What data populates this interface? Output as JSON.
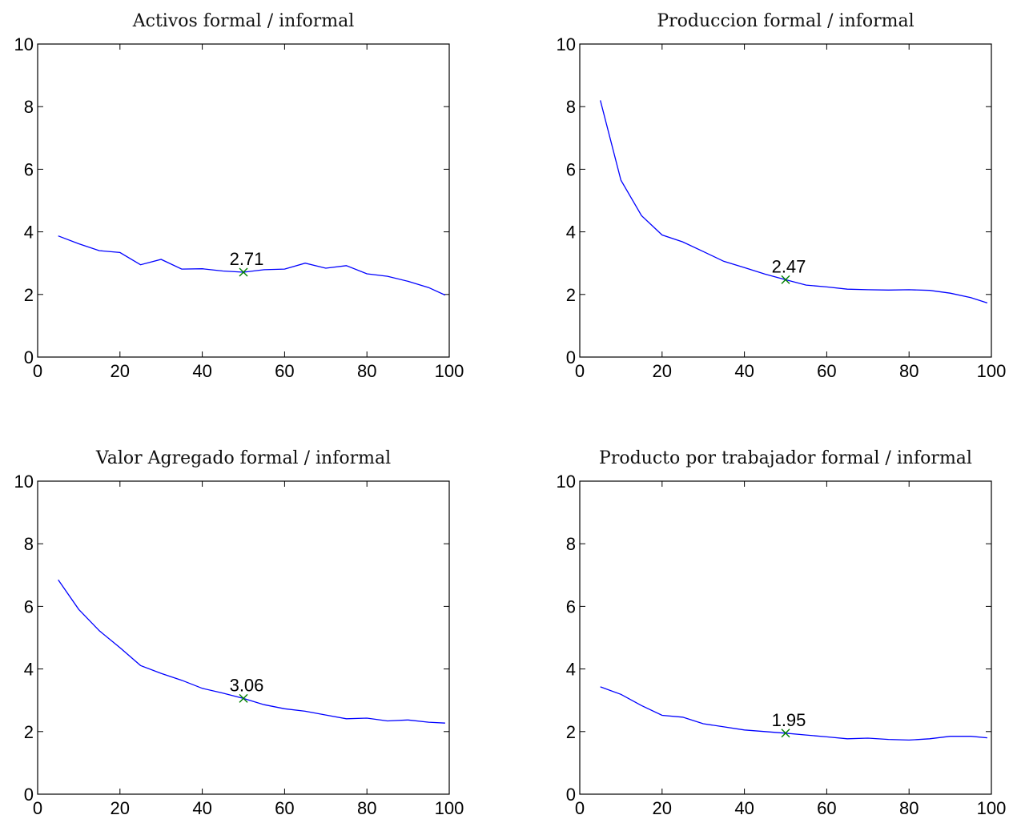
{
  "chart_data": [
    {
      "type": "line",
      "title": "Activos formal / informal",
      "xlim": [
        0,
        100
      ],
      "ylim": [
        0,
        10
      ],
      "xticks": [
        0,
        20,
        40,
        60,
        80,
        100
      ],
      "yticks": [
        0,
        2,
        4,
        6,
        8,
        10
      ],
      "grid": false,
      "series": [
        {
          "x": [
            5,
            10,
            15,
            20,
            25,
            30,
            35,
            40,
            45,
            50,
            55,
            60,
            65,
            70,
            75,
            80,
            85,
            90,
            95,
            99
          ],
          "values": [
            3.87,
            3.62,
            3.4,
            3.34,
            2.95,
            3.12,
            2.81,
            2.82,
            2.75,
            2.71,
            2.79,
            2.81,
            3.0,
            2.84,
            2.92,
            2.66,
            2.58,
            2.42,
            2.22,
            1.98
          ],
          "color": "#0000ff"
        }
      ],
      "annotation": {
        "x": 50,
        "y": 2.71,
        "label": "2.71",
        "color": "#008000"
      }
    },
    {
      "type": "line",
      "title": "Produccion formal / informal",
      "xlim": [
        0,
        100
      ],
      "ylim": [
        0,
        10
      ],
      "xticks": [
        0,
        20,
        40,
        60,
        80,
        100
      ],
      "yticks": [
        0,
        2,
        4,
        6,
        8,
        10
      ],
      "grid": false,
      "series": [
        {
          "x": [
            5,
            10,
            15,
            20,
            25,
            30,
            35,
            40,
            45,
            50,
            55,
            60,
            65,
            70,
            75,
            80,
            85,
            90,
            95,
            99
          ],
          "values": [
            8.2,
            5.65,
            4.52,
            3.9,
            3.68,
            3.37,
            3.06,
            2.86,
            2.65,
            2.47,
            2.3,
            2.24,
            2.17,
            2.15,
            2.14,
            2.15,
            2.13,
            2.04,
            1.9,
            1.73
          ],
          "color": "#0000ff"
        }
      ],
      "annotation": {
        "x": 50,
        "y": 2.47,
        "label": "2.47",
        "color": "#008000"
      }
    },
    {
      "type": "line",
      "title": "Valor Agregado formal / informal",
      "xlim": [
        0,
        100
      ],
      "ylim": [
        0,
        10
      ],
      "xticks": [
        0,
        20,
        40,
        60,
        80,
        100
      ],
      "yticks": [
        0,
        2,
        4,
        6,
        8,
        10
      ],
      "grid": false,
      "series": [
        {
          "x": [
            5,
            10,
            15,
            20,
            25,
            30,
            35,
            40,
            45,
            50,
            55,
            60,
            65,
            70,
            75,
            80,
            85,
            90,
            95,
            99
          ],
          "values": [
            6.85,
            5.9,
            5.22,
            4.68,
            4.11,
            3.86,
            3.64,
            3.38,
            3.23,
            3.06,
            2.86,
            2.73,
            2.65,
            2.53,
            2.41,
            2.43,
            2.34,
            2.37,
            2.3,
            2.27
          ],
          "color": "#0000ff"
        }
      ],
      "annotation": {
        "x": 50,
        "y": 3.06,
        "label": "3.06",
        "color": "#008000"
      }
    },
    {
      "type": "line",
      "title": "Producto por trabajador formal / informal",
      "xlim": [
        0,
        100
      ],
      "ylim": [
        0,
        10
      ],
      "xticks": [
        0,
        20,
        40,
        60,
        80,
        100
      ],
      "yticks": [
        0,
        2,
        4,
        6,
        8,
        10
      ],
      "grid": false,
      "series": [
        {
          "x": [
            5,
            10,
            15,
            20,
            25,
            30,
            35,
            40,
            45,
            50,
            55,
            60,
            65,
            70,
            75,
            80,
            85,
            90,
            95,
            99
          ],
          "values": [
            3.43,
            3.19,
            2.83,
            2.52,
            2.46,
            2.25,
            2.15,
            2.05,
            2.0,
            1.95,
            1.89,
            1.83,
            1.77,
            1.79,
            1.75,
            1.73,
            1.77,
            1.85,
            1.85,
            1.8
          ],
          "color": "#0000ff"
        }
      ],
      "annotation": {
        "x": 50,
        "y": 1.95,
        "label": "1.95",
        "color": "#008000"
      }
    }
  ]
}
